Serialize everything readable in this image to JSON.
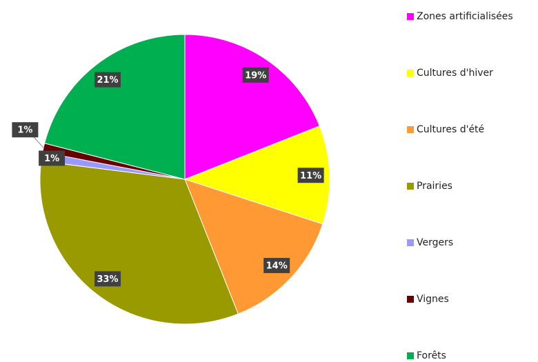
{
  "chart_data": {
    "type": "pie",
    "categories": [
      "Zones artificialisées",
      "Cultures d'hiver",
      "Cultures d'été",
      "Prairies",
      "Vergers",
      "Vignes",
      "Forêts"
    ],
    "values": [
      19,
      11,
      14,
      33,
      1,
      1,
      21
    ],
    "value_labels": [
      "19%",
      "11%",
      "14%",
      "33%",
      "1%",
      "1%",
      "21%"
    ],
    "colors": [
      "#ff00ff",
      "#ffff00",
      "#ff9933",
      "#999900",
      "#9999ff",
      "#660000",
      "#00b050"
    ],
    "legend": "right"
  }
}
